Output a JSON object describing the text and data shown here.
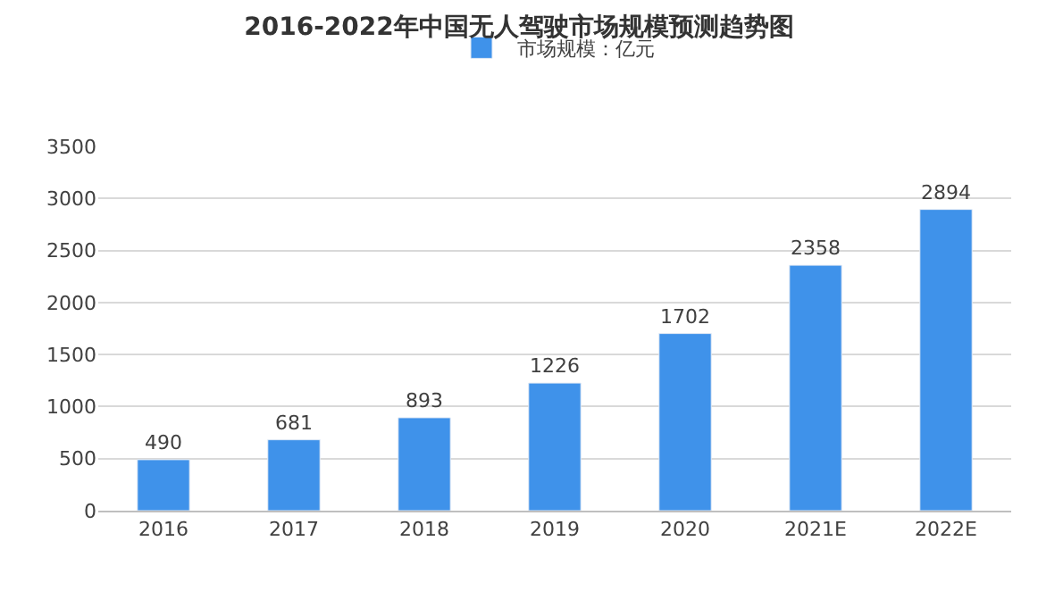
{
  "chart_data": {
    "type": "bar",
    "title": "2016-2022年中国无人驾驶市场规模预测趋势图",
    "categories": [
      "2016",
      "2017",
      "2018",
      "2019",
      "2020",
      "2021E",
      "2022E"
    ],
    "series": [
      {
        "name": "市场规模：亿元",
        "color": "#3f92ea",
        "values": [
          490,
          681,
          893,
          1226,
          1702,
          2358,
          2894
        ]
      }
    ],
    "ylim": [
      0,
      3500
    ],
    "yticks": [
      0,
      500,
      1000,
      1500,
      2000,
      2500,
      3000,
      3500
    ],
    "grid": "y",
    "legend": "top",
    "data_labels": true
  }
}
